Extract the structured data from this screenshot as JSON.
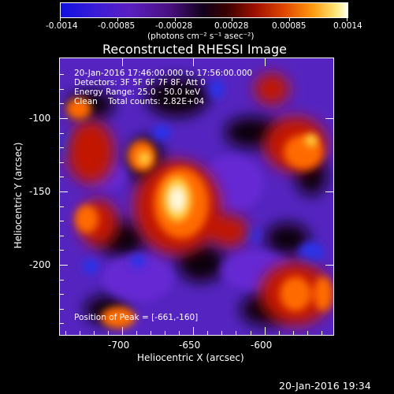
{
  "colorbar": {
    "min_label": "-0.0014",
    "tick_labels": [
      "-0.0014",
      "-0.00085",
      "-0.00028",
      "0.00028",
      "0.00085",
      "0.0014"
    ],
    "units_label": "(photons cm⁻² s⁻¹ asec⁻²)"
  },
  "plot": {
    "title": "Reconstructed RHESSI Image",
    "xlabel": "Heliocentric X (arcsec)",
    "ylabel": "Heliocentric Y (arcsec)",
    "x_ticks": [
      "-700",
      "-650",
      "-600"
    ],
    "y_ticks": [
      "-100",
      "-150",
      "-200"
    ],
    "info_lines": [
      "20-Jan-2016 17:46:00.000 to 17:56:00.000",
      "Detectors: 3F 5F 6F 7F 8F, Att 0",
      "Energy Range: 25.0 - 50.0 keV",
      "Clean    Total counts: 2.82E+04"
    ],
    "peak_label": "Position of Peak = [-661,-160]"
  },
  "footer": {
    "timestamp": "20-Jan-2016 19:34"
  },
  "colors": {
    "background": "#000000",
    "axis": "#ffffff"
  }
}
